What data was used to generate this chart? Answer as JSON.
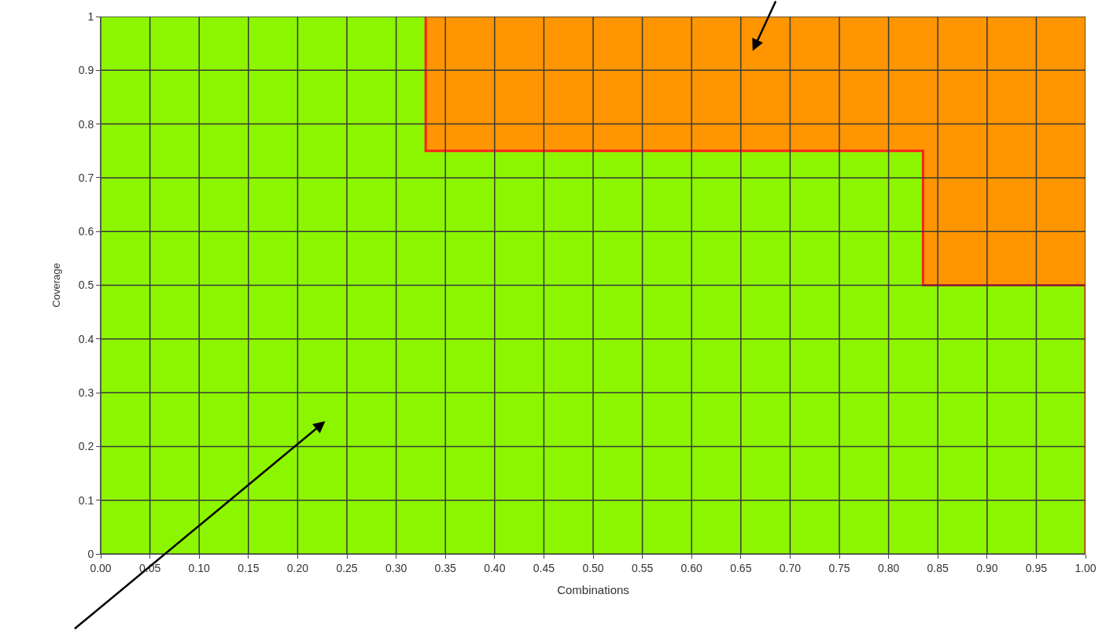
{
  "chart_data": {
    "type": "area",
    "xlabel": "Combinations",
    "ylabel": "Coverage",
    "stacked": true,
    "grid": true,
    "xlim": [
      0,
      1
    ],
    "ylim": [
      0,
      1
    ],
    "xticks": [
      {
        "value": 0,
        "label": "0.00"
      },
      {
        "value": 0.05,
        "label": "0.05"
      },
      {
        "value": 0.1,
        "label": "0.10"
      },
      {
        "value": 0.15,
        "label": "0.15"
      },
      {
        "value": 0.2,
        "label": "0.20"
      },
      {
        "value": 0.25,
        "label": "0.25"
      },
      {
        "value": 0.3,
        "label": "0.30"
      },
      {
        "value": 0.35,
        "label": "0.35"
      },
      {
        "value": 0.4,
        "label": "0.40"
      },
      {
        "value": 0.45,
        "label": "0.45"
      },
      {
        "value": 0.5,
        "label": "0.50"
      },
      {
        "value": 0.55,
        "label": "0.55"
      },
      {
        "value": 0.6,
        "label": "0.60"
      },
      {
        "value": 0.65,
        "label": "0.65"
      },
      {
        "value": 0.7,
        "label": "0.70"
      },
      {
        "value": 0.75,
        "label": "0.75"
      },
      {
        "value": 0.8,
        "label": "0.80"
      },
      {
        "value": 0.85,
        "label": "0.85"
      },
      {
        "value": 0.9,
        "label": "0.90"
      },
      {
        "value": 0.95,
        "label": "0.95"
      },
      {
        "value": 1,
        "label": "1.00"
      }
    ],
    "yticks": [
      0,
      0.1,
      0.2,
      0.3,
      0.4,
      0.5,
      0.6,
      0.7,
      0.8,
      0.9,
      1
    ],
    "x": [
      0,
      0.33,
      0.33,
      0.835,
      0.835,
      1
    ],
    "series": [
      {
        "color": "#8cf500",
        "values": [
          1,
          1,
          0.75,
          0.75,
          0.5,
          0.5
        ]
      },
      {
        "color": "#ff9500",
        "values": [
          0,
          0,
          0.25,
          0.25,
          0.5,
          0.5
        ]
      },
      {
        "type": "line",
        "color": "#ff2020",
        "x": [
          0.33,
          0.33,
          0.835,
          0.835,
          1,
          1
        ],
        "values": [
          1,
          0.75,
          0.75,
          0.5,
          0.5,
          0
        ]
      }
    ]
  }
}
